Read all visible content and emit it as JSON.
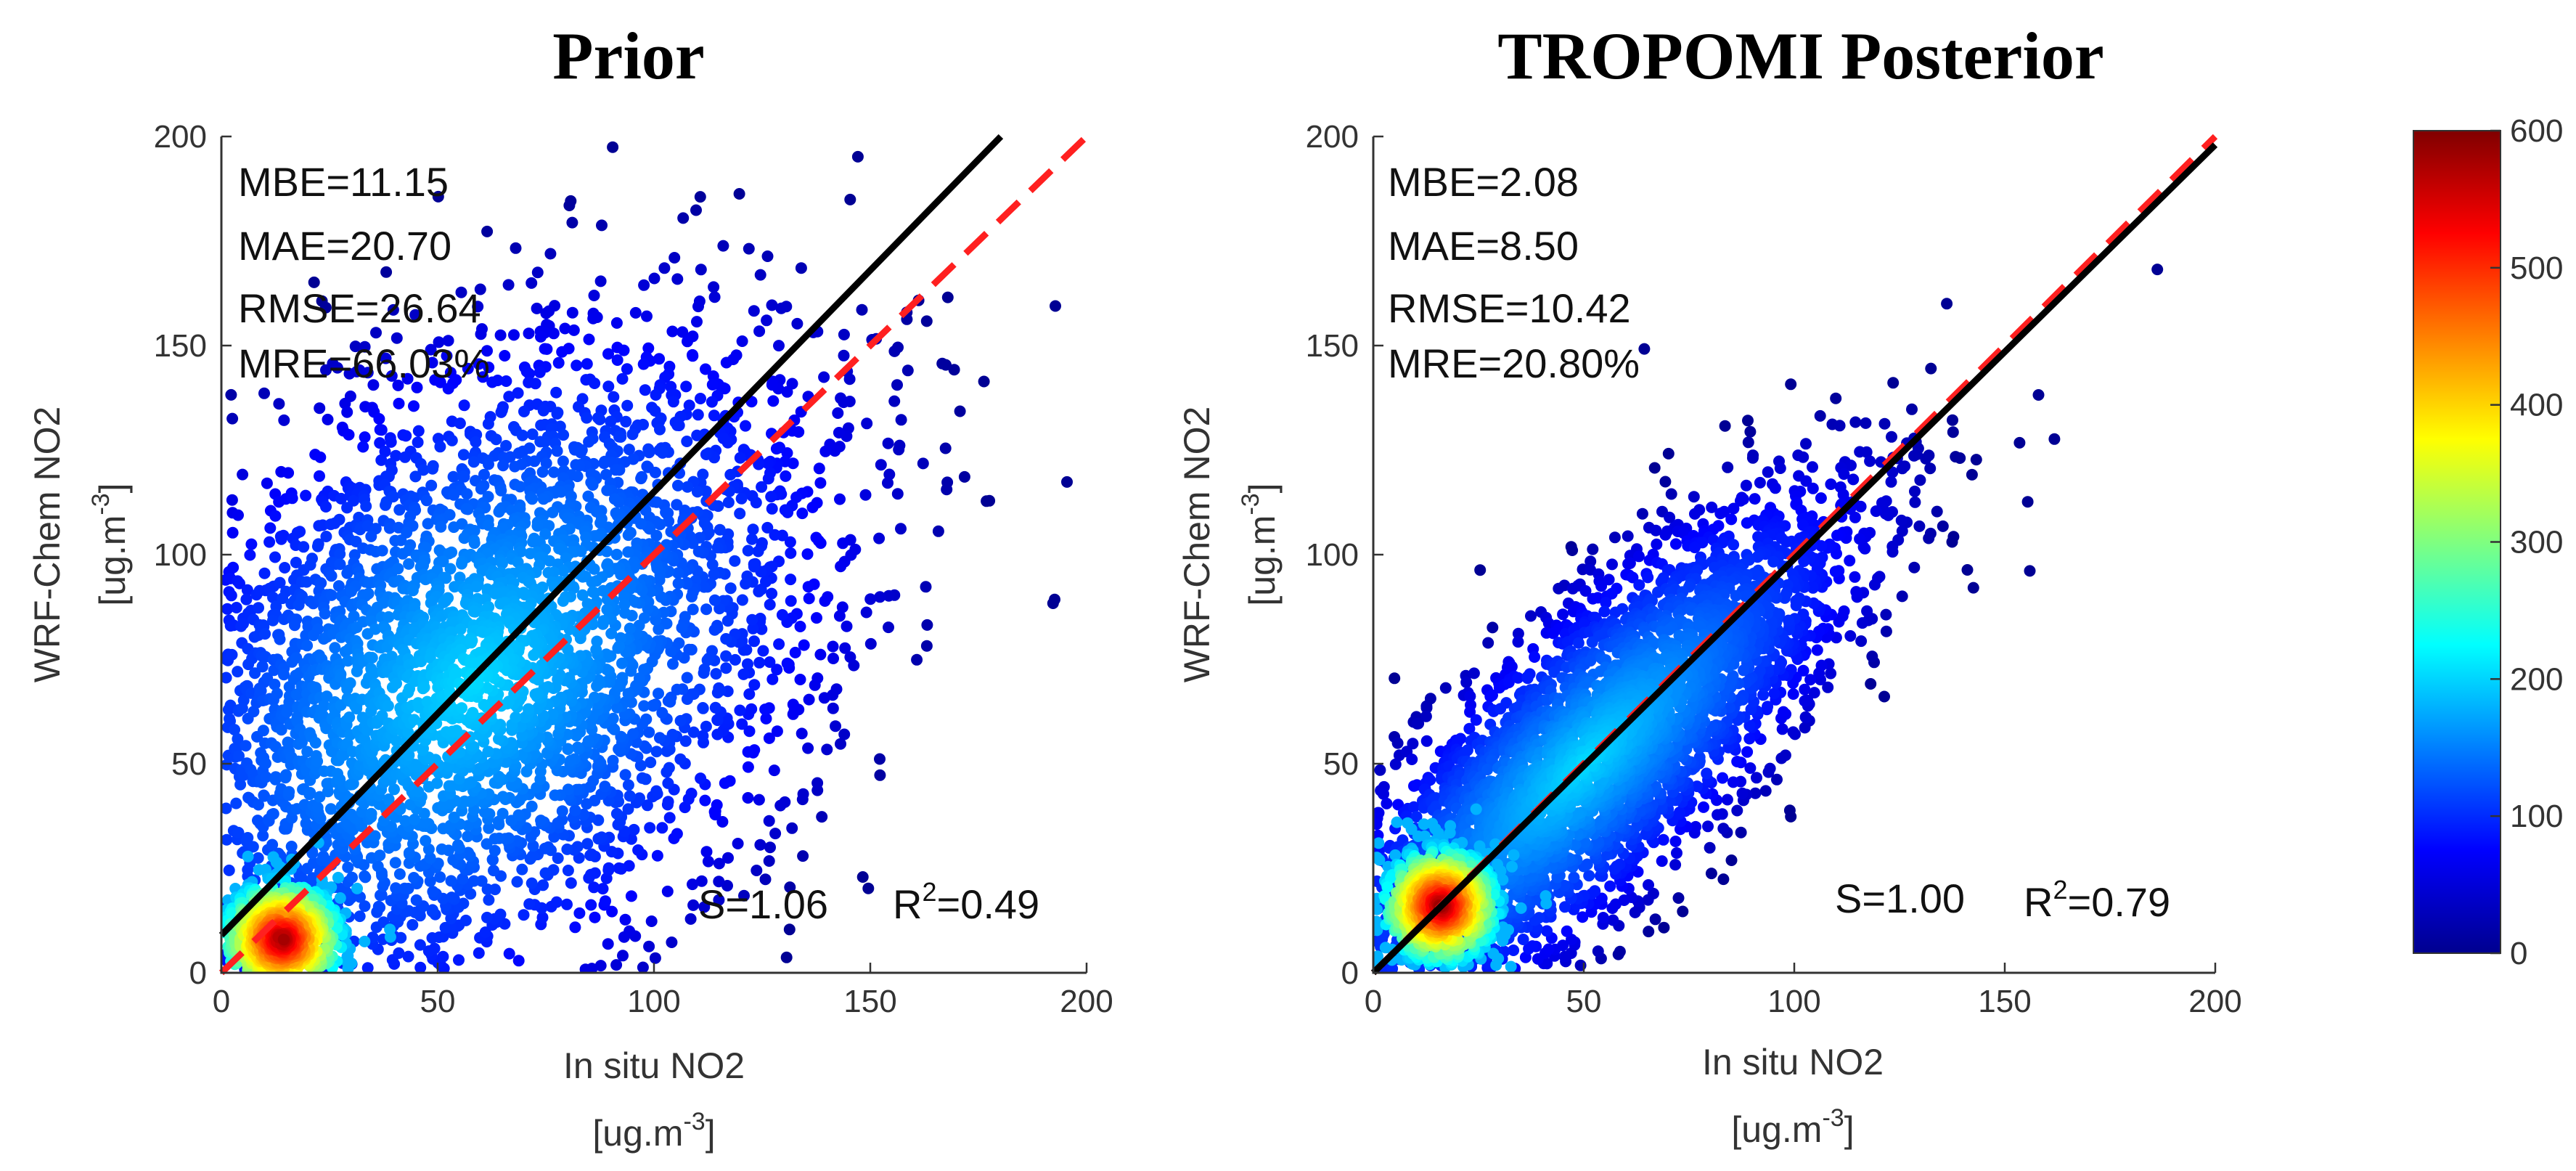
{
  "chart_data": [
    {
      "type": "scatter",
      "title": "Prior",
      "xlabel": "In situ NO2",
      "ylabel": "WRF-Chem NO2",
      "unit": {
        "base": "[ug.m",
        "sup": "-3",
        "close": "]"
      },
      "xlim": [
        0,
        200
      ],
      "ylim": [
        0,
        200
      ],
      "xticks": [
        "0",
        "50",
        "100",
        "150",
        "200"
      ],
      "yticks": [
        "0",
        "50",
        "100",
        "150",
        "200"
      ],
      "stats": [
        "MBE=11.15",
        "MAE=20.70",
        "RMSE=26.64",
        "MRE=66.03%"
      ],
      "slope_label": "S=1.06",
      "r2": {
        "base": "R",
        "sup": "2",
        "value": "=0.49"
      },
      "fit_line": {
        "slope": 1.06,
        "intercept": 9,
        "color": "#000000"
      },
      "one_to_one": {
        "color": "#ff2020"
      },
      "density": {
        "cloud_center": [
          58,
          70
        ],
        "cloud_spread_along": 48,
        "cloud_spread_across": 32,
        "hotspot": [
          14,
          8
        ]
      }
    },
    {
      "type": "scatter",
      "title": "TROPOMI Posterior",
      "xlabel": "In situ NO2",
      "ylabel": "WRF-Chem NO2",
      "unit": {
        "base": "[ug.m",
        "sup": "-3",
        "close": "]"
      },
      "xlim": [
        0,
        200
      ],
      "ylim": [
        0,
        200
      ],
      "xticks": [
        "0",
        "50",
        "100",
        "150",
        "200"
      ],
      "yticks": [
        "0",
        "50",
        "100",
        "150",
        "200"
      ],
      "stats": [
        "MBE=2.08",
        "MAE=8.50",
        "RMSE=10.42",
        "MRE=20.80%"
      ],
      "slope_label": "S=1.00",
      "r2": {
        "base": "R",
        "sup": "2",
        "value": "=0.79"
      },
      "fit_line": {
        "slope": 0.99,
        "intercept": 0,
        "color": "#000000"
      },
      "one_to_one": {
        "color": "#ff2020"
      },
      "density": {
        "cloud_center": [
          50,
          50
        ],
        "cloud_spread_along": 42,
        "cloud_spread_across": 14,
        "hotspot": [
          16,
          16
        ]
      }
    }
  ],
  "colorbar": {
    "min": 0,
    "max": 600,
    "ticks": [
      "0",
      "100",
      "200",
      "300",
      "400",
      "500",
      "600"
    ],
    "colormap": "jet"
  }
}
